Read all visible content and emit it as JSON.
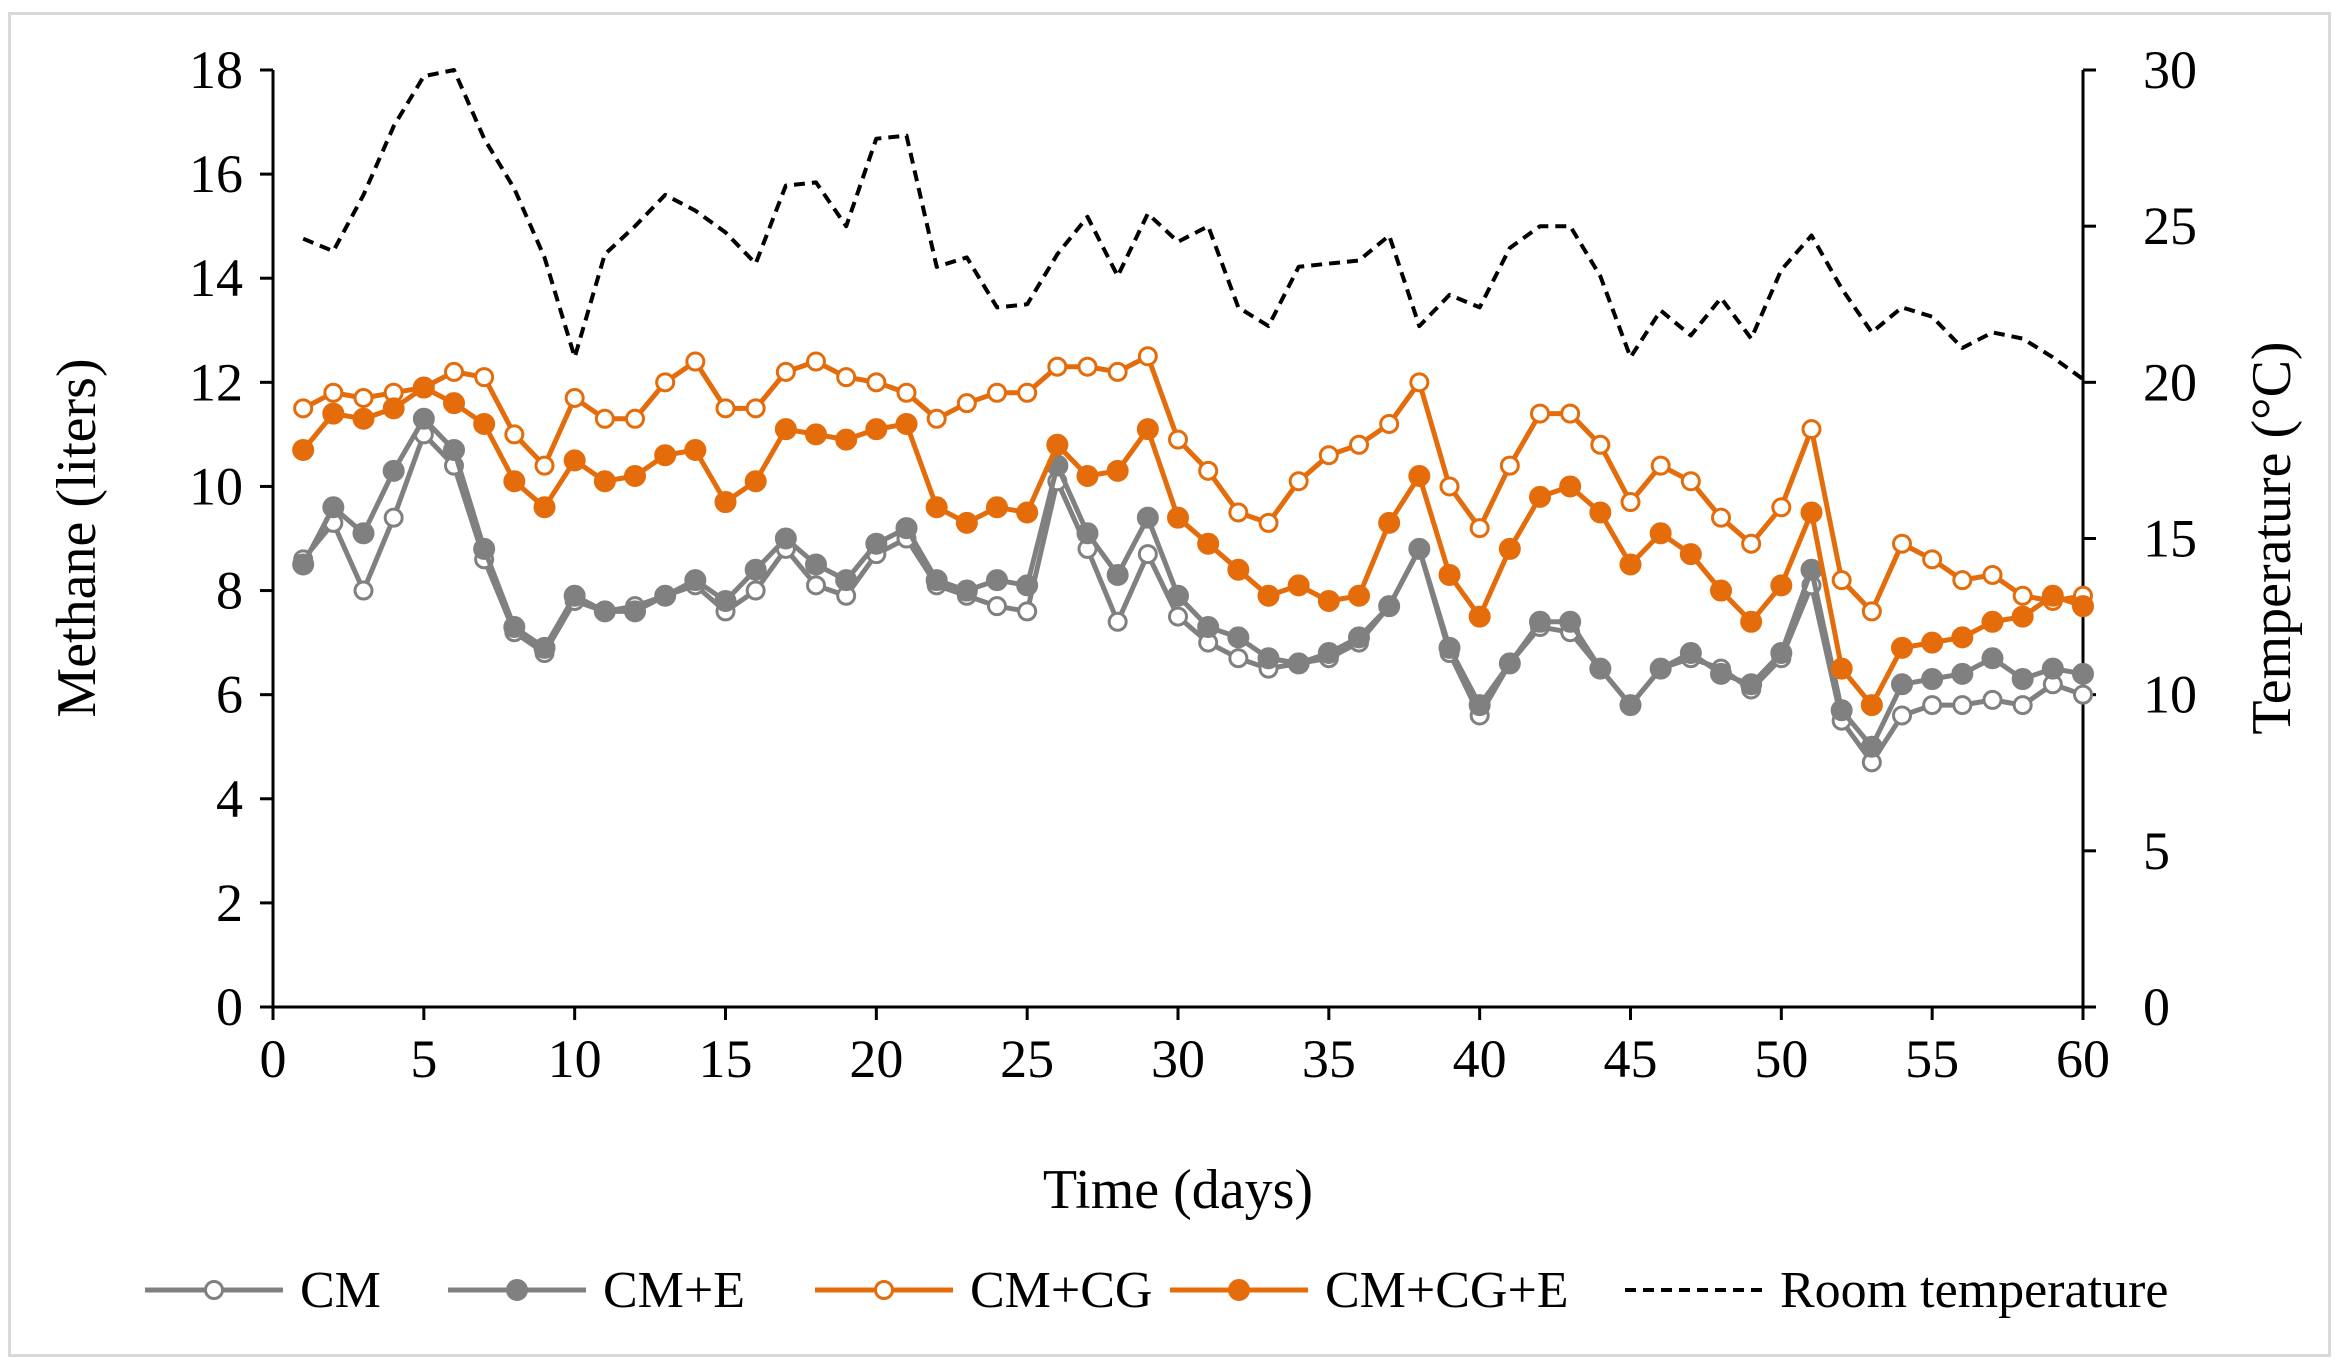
{
  "chart_data": {
    "type": "line",
    "xlabel": "Time (days)",
    "ylabel": "Methane (liters)",
    "y2label": "Temperature (°C)",
    "xlim": [
      0,
      60
    ],
    "ylim": [
      0,
      18
    ],
    "y2lim": [
      0,
      30
    ],
    "x_ticks": [
      0,
      5,
      10,
      15,
      20,
      25,
      30,
      35,
      40,
      45,
      50,
      55,
      60
    ],
    "y_ticks": [
      0,
      2,
      4,
      6,
      8,
      10,
      12,
      14,
      16,
      18
    ],
    "y2_ticks": [
      0,
      5,
      10,
      15,
      20,
      25,
      30
    ],
    "legend_position": "bottom",
    "series": [
      {
        "name": "CM",
        "color": "#808080",
        "marker": "open-circle",
        "axis": "left",
        "dash": "solid",
        "x": [
          1,
          2,
          3,
          4,
          5,
          6,
          7,
          8,
          9,
          10,
          11,
          12,
          13,
          14,
          15,
          16,
          17,
          18,
          19,
          20,
          21,
          22,
          23,
          24,
          25,
          26,
          27,
          28,
          29,
          30,
          31,
          32,
          33,
          34,
          35,
          36,
          37,
          38,
          39,
          40,
          41,
          42,
          43,
          44,
          45,
          46,
          47,
          48,
          49,
          50,
          51,
          52,
          53,
          54,
          55,
          56,
          57,
          58,
          59,
          60
        ],
        "values": [
          8.6,
          9.3,
          8.0,
          9.4,
          11.0,
          10.4,
          8.6,
          7.2,
          6.8,
          7.8,
          7.6,
          7.7,
          7.9,
          8.1,
          7.6,
          8.0,
          8.8,
          8.1,
          7.9,
          8.7,
          9.0,
          8.1,
          7.9,
          7.7,
          7.6,
          10.1,
          8.8,
          7.4,
          8.7,
          7.5,
          7.0,
          6.7,
          6.5,
          6.6,
          6.7,
          7.0,
          7.7,
          8.8,
          6.8,
          5.6,
          6.6,
          7.3,
          7.2,
          6.5,
          5.8,
          6.5,
          6.7,
          6.5,
          6.1,
          6.7,
          8.1,
          5.5,
          4.7,
          5.6,
          5.8,
          5.8,
          5.9,
          5.8,
          6.2,
          6.0
        ]
      },
      {
        "name": "CM+E",
        "color": "#808080",
        "marker": "filled-circle",
        "axis": "left",
        "dash": "solid",
        "x": [
          1,
          2,
          3,
          4,
          5,
          6,
          7,
          8,
          9,
          10,
          11,
          12,
          13,
          14,
          15,
          16,
          17,
          18,
          19,
          20,
          21,
          22,
          23,
          24,
          25,
          26,
          27,
          28,
          29,
          30,
          31,
          32,
          33,
          34,
          35,
          36,
          37,
          38,
          39,
          40,
          41,
          42,
          43,
          44,
          45,
          46,
          47,
          48,
          49,
          50,
          51,
          52,
          53,
          54,
          55,
          56,
          57,
          58,
          59,
          60
        ],
        "values": [
          8.5,
          9.6,
          9.1,
          10.3,
          11.3,
          10.7,
          8.8,
          7.3,
          6.9,
          7.9,
          7.6,
          7.6,
          7.9,
          8.2,
          7.8,
          8.4,
          9.0,
          8.5,
          8.2,
          8.9,
          9.2,
          8.2,
          8.0,
          8.2,
          8.1,
          10.4,
          9.1,
          8.3,
          9.4,
          7.9,
          7.3,
          7.1,
          6.7,
          6.6,
          6.8,
          7.1,
          7.7,
          8.8,
          6.9,
          5.8,
          6.6,
          7.4,
          7.4,
          6.5,
          5.8,
          6.5,
          6.8,
          6.4,
          6.2,
          6.8,
          8.4,
          5.7,
          5.0,
          6.2,
          6.3,
          6.4,
          6.7,
          6.3,
          6.5,
          6.4
        ]
      },
      {
        "name": "CM+CG",
        "color": "#E46C0A",
        "marker": "open-circle",
        "axis": "left",
        "dash": "solid",
        "x": [
          1,
          2,
          3,
          4,
          5,
          6,
          7,
          8,
          9,
          10,
          11,
          12,
          13,
          14,
          15,
          16,
          17,
          18,
          19,
          20,
          21,
          22,
          23,
          24,
          25,
          26,
          27,
          28,
          29,
          30,
          31,
          32,
          33,
          34,
          35,
          36,
          37,
          38,
          39,
          40,
          41,
          42,
          43,
          44,
          45,
          46,
          47,
          48,
          49,
          50,
          51,
          52,
          53,
          54,
          55,
          56,
          57,
          58,
          59,
          60
        ],
        "values": [
          11.5,
          11.8,
          11.7,
          11.8,
          11.9,
          12.2,
          12.1,
          11.0,
          10.4,
          11.7,
          11.3,
          11.3,
          12.0,
          12.4,
          11.5,
          11.5,
          12.2,
          12.4,
          12.1,
          12.0,
          11.8,
          11.3,
          11.6,
          11.8,
          11.8,
          12.3,
          12.3,
          12.2,
          12.5,
          10.9,
          10.3,
          9.5,
          9.3,
          10.1,
          10.6,
          10.8,
          11.2,
          12.0,
          10.0,
          9.2,
          10.4,
          11.4,
          11.4,
          10.8,
          9.7,
          10.4,
          10.1,
          9.4,
          8.9,
          9.6,
          11.1,
          8.2,
          7.6,
          8.9,
          8.6,
          8.2,
          8.3,
          7.9,
          7.8,
          7.9
        ]
      },
      {
        "name": "CM+CG+E",
        "color": "#E46C0A",
        "marker": "filled-circle",
        "axis": "left",
        "dash": "solid",
        "x": [
          1,
          2,
          3,
          4,
          5,
          6,
          7,
          8,
          9,
          10,
          11,
          12,
          13,
          14,
          15,
          16,
          17,
          18,
          19,
          20,
          21,
          22,
          23,
          24,
          25,
          26,
          27,
          28,
          29,
          30,
          31,
          32,
          33,
          34,
          35,
          36,
          37,
          38,
          39,
          40,
          41,
          42,
          43,
          44,
          45,
          46,
          47,
          48,
          49,
          50,
          51,
          52,
          53,
          54,
          55,
          56,
          57,
          58,
          59,
          60
        ],
        "values": [
          10.7,
          11.4,
          11.3,
          11.5,
          11.9,
          11.6,
          11.2,
          10.1,
          9.6,
          10.5,
          10.1,
          10.2,
          10.6,
          10.7,
          9.7,
          10.1,
          11.1,
          11.0,
          10.9,
          11.1,
          11.2,
          9.6,
          9.3,
          9.6,
          9.5,
          10.8,
          10.2,
          10.3,
          11.1,
          9.4,
          8.9,
          8.4,
          7.9,
          8.1,
          7.8,
          7.9,
          9.3,
          10.2,
          8.3,
          7.5,
          8.8,
          9.8,
          10.0,
          9.5,
          8.5,
          9.1,
          8.7,
          8.0,
          7.4,
          8.1,
          9.5,
          6.5,
          5.8,
          6.9,
          7.0,
          7.1,
          7.4,
          7.5,
          7.9,
          7.7
        ]
      },
      {
        "name": "Room temperature",
        "color": "#000000",
        "marker": "none",
        "axis": "right",
        "dash": "dashed",
        "x": [
          1,
          2,
          3,
          4,
          5,
          6,
          7,
          8,
          9,
          10,
          11,
          12,
          13,
          14,
          15,
          16,
          17,
          18,
          19,
          20,
          21,
          22,
          23,
          24,
          25,
          26,
          27,
          28,
          29,
          30,
          31,
          32,
          33,
          34,
          35,
          36,
          37,
          38,
          39,
          40,
          41,
          42,
          43,
          44,
          45,
          46,
          47,
          48,
          49,
          50,
          51,
          52,
          53,
          54,
          55,
          56,
          57,
          58,
          59,
          60
        ],
        "values": [
          24.6,
          24.2,
          26.0,
          28.2,
          29.8,
          30.0,
          27.8,
          26.2,
          24.0,
          20.8,
          24.1,
          25.0,
          26.0,
          25.5,
          24.8,
          23.8,
          26.3,
          26.4,
          25.0,
          27.8,
          27.9,
          23.7,
          24.0,
          22.4,
          22.5,
          24.1,
          25.3,
          23.4,
          25.4,
          24.5,
          25.0,
          22.4,
          21.8,
          23.7,
          23.8,
          23.9,
          24.7,
          21.8,
          22.8,
          22.4,
          24.3,
          25.0,
          25.0,
          23.4,
          20.8,
          22.3,
          21.5,
          22.7,
          21.4,
          23.6,
          24.7,
          23.0,
          21.6,
          22.4,
          22.1,
          21.1,
          21.6,
          21.4,
          20.8,
          20.1
        ]
      }
    ]
  }
}
